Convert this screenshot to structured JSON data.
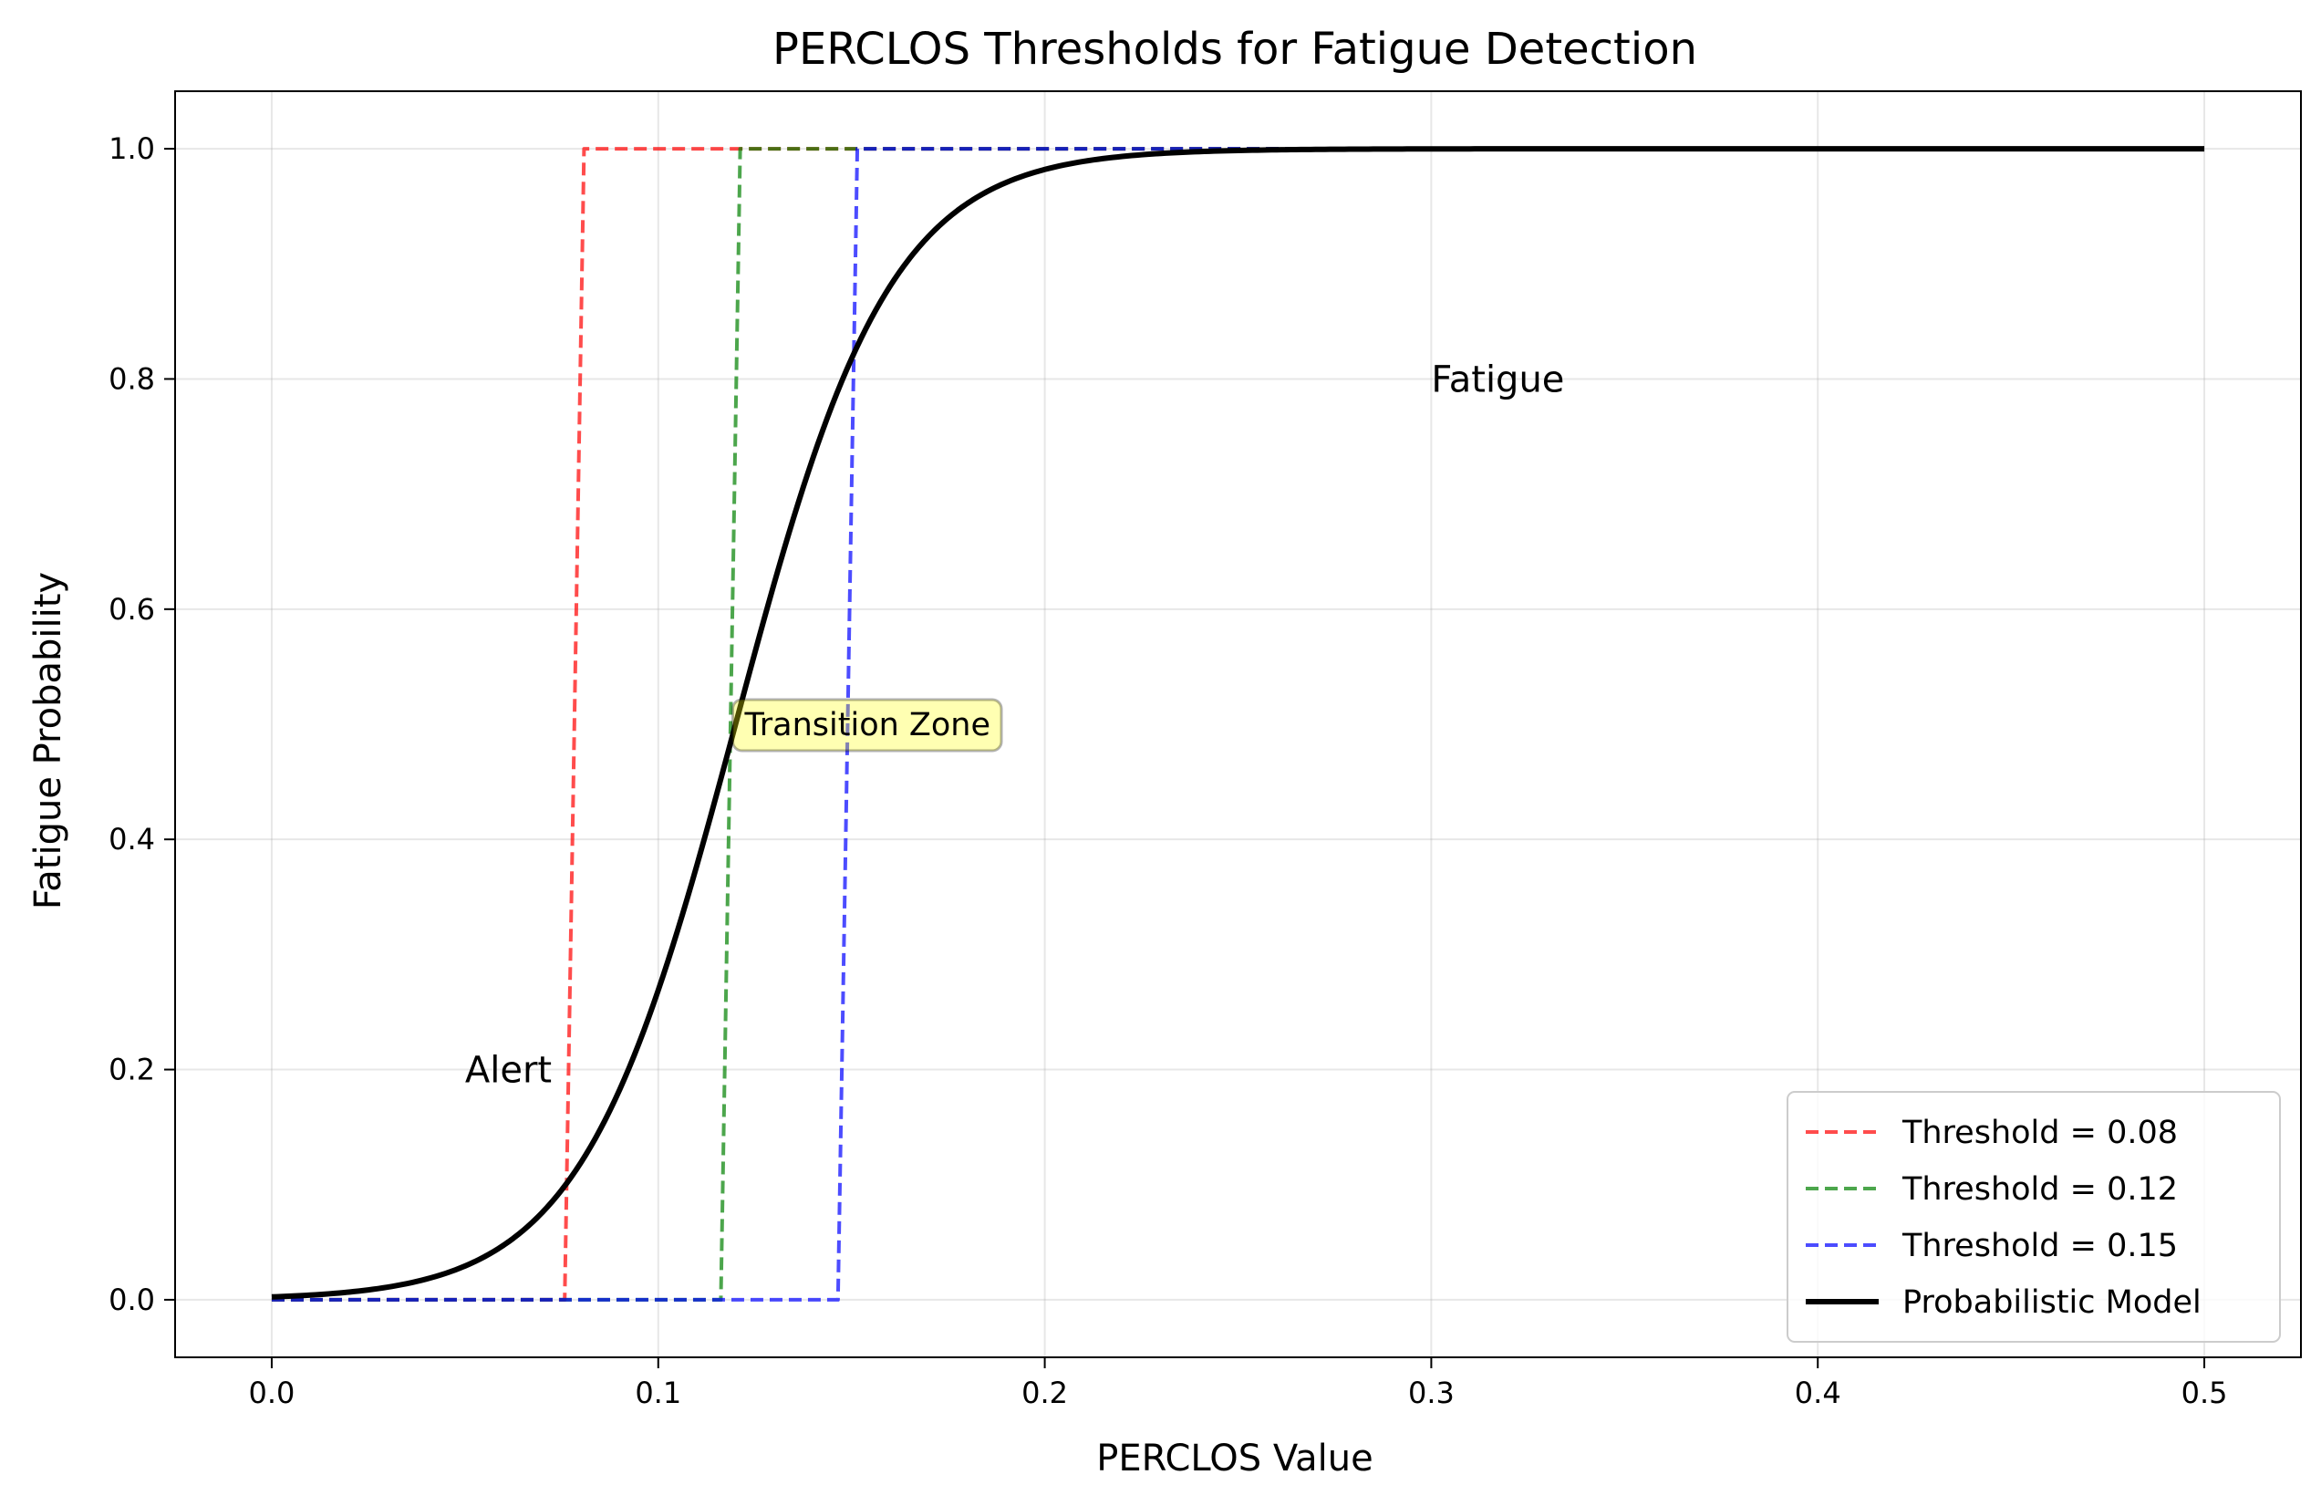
{
  "chart_data": {
    "type": "line",
    "title": "PERCLOS Thresholds for Fatigue Detection",
    "xlabel": "PERCLOS Value",
    "ylabel": "Fatigue Probability",
    "xlim": [
      -0.025,
      0.525
    ],
    "ylim": [
      -0.05,
      1.05
    ],
    "xticks": [
      0.0,
      0.1,
      0.2,
      0.3,
      0.4,
      0.5
    ],
    "xtick_labels": [
      "0.0",
      "0.1",
      "0.2",
      "0.3",
      "0.4",
      "0.5"
    ],
    "yticks": [
      0.0,
      0.2,
      0.4,
      0.6,
      0.8,
      1.0
    ],
    "ytick_labels": [
      "0.0",
      "0.2",
      "0.4",
      "0.6",
      "0.8",
      "1.0"
    ],
    "grid": true,
    "legend_position": "lower right",
    "series": [
      {
        "name": "Threshold = 0.08",
        "style": "dashed",
        "color": "#ff0000",
        "opacity": 0.7,
        "x": [
          0.0,
          0.0758,
          0.0808,
          0.5
        ],
        "y": [
          0.0,
          0.0,
          1.0,
          1.0
        ]
      },
      {
        "name": "Threshold = 0.12",
        "style": "dashed",
        "color": "#008000",
        "opacity": 0.7,
        "x": [
          0.0,
          0.1162,
          0.1212,
          0.5
        ],
        "y": [
          0.0,
          0.0,
          1.0,
          1.0
        ]
      },
      {
        "name": "Threshold = 0.15",
        "style": "dashed",
        "color": "#0000ff",
        "opacity": 0.7,
        "x": [
          0.0,
          0.1465,
          0.1515,
          0.5
        ],
        "y": [
          0.0,
          0.0,
          1.0,
          1.0
        ]
      },
      {
        "name": "Probabilistic Model",
        "style": "solid",
        "color": "#000000",
        "opacity": 1.0,
        "function": "logistic",
        "midpoint": 0.12,
        "steepness": 50,
        "x_range": [
          0.0,
          0.5
        ]
      }
    ],
    "annotations": [
      {
        "text": "Alert",
        "x": 0.05,
        "y": 0.2,
        "boxed": false
      },
      {
        "text": "Transition Zone",
        "x": 0.12,
        "y": 0.5,
        "boxed": true,
        "box_color": "#ffff00"
      },
      {
        "text": "Fatigue",
        "x": 0.3,
        "y": 0.8,
        "boxed": false
      }
    ]
  }
}
